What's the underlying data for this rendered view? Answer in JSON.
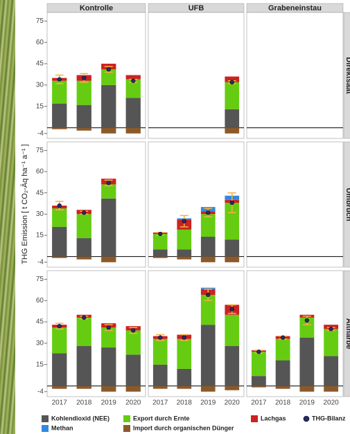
{
  "chart_data": {
    "type": "bar",
    "ylabel": "THG Emission [ t CO₂-Äq ha⁻¹ a⁻¹ ]",
    "facet_columns": [
      "Kontrolle",
      "UFB",
      "Grabeneinstau"
    ],
    "facet_rows": [
      "Direktsaat",
      "Umbruch",
      "Altnarbe"
    ],
    "categories": [
      "2017",
      "2018",
      "2019",
      "2020"
    ],
    "ylim": [
      -7.5,
      81
    ],
    "yticks": [
      -4,
      15,
      30,
      45,
      60,
      75
    ],
    "grid": false,
    "series": [
      {
        "name": "Kohlendioxid (NEE)",
        "color": "#555555"
      },
      {
        "name": "Export durch Ernte",
        "color": "#66cc11"
      },
      {
        "name": "Lachgas",
        "color": "#cc2222"
      },
      {
        "name": "Methan",
        "color": "#3388dd"
      },
      {
        "name": "Import durch organischen Dünger",
        "color": "#8b5a2b"
      }
    ],
    "balance_series": {
      "name": "THG-Bilanz",
      "color": "#2a2a70",
      "error_color": "#f5b041"
    },
    "panels": [
      {
        "series_values": [
          [
            17,
            16,
            30,
            21
          ],
          [
            16,
            17,
            11,
            13
          ],
          [
            2,
            4,
            4,
            3
          ],
          [
            0,
            0,
            0,
            0
          ],
          [
            -1,
            -2,
            -4,
            -4
          ]
        ],
        "balance": [
          34,
          35,
          41,
          33
        ],
        "balance_error": [
          3,
          3,
          2,
          1
        ]
      },
      {
        "series_values": [
          [
            null,
            null,
            null,
            13
          ],
          [
            null,
            null,
            null,
            19
          ],
          [
            null,
            null,
            null,
            4
          ],
          [
            null,
            null,
            null,
            0
          ],
          [
            null,
            null,
            null,
            -4
          ]
        ],
        "balance": [
          null,
          null,
          null,
          32
        ],
        "balance_error": [
          null,
          null,
          null,
          1
        ]
      },
      {
        "series_values": [
          [
            null,
            null,
            null,
            null
          ],
          [
            null,
            null,
            null,
            null
          ],
          [
            null,
            null,
            null,
            null
          ],
          [
            null,
            null,
            null,
            null
          ],
          [
            null,
            null,
            null,
            null
          ]
        ],
        "balance": [
          null,
          null,
          null,
          null
        ],
        "balance_error": [
          null,
          null,
          null,
          null
        ]
      },
      {
        "series_values": [
          [
            21,
            13,
            41,
            null
          ],
          [
            13,
            17,
            10,
            null
          ],
          [
            2,
            3,
            4,
            null
          ],
          [
            0,
            0,
            0,
            null
          ],
          [
            -1,
            -2,
            -4,
            null
          ]
        ],
        "balance": [
          36,
          31,
          52,
          null
        ],
        "balance_error": [
          3,
          1,
          2,
          null
        ]
      },
      {
        "series_values": [
          [
            5,
            5,
            14,
            12
          ],
          [
            11,
            14,
            16,
            26
          ],
          [
            1,
            7,
            2,
            2
          ],
          [
            0,
            1,
            3,
            3
          ],
          [
            -1,
            -2,
            -4,
            -4
          ]
        ],
        "balance": [
          16,
          25,
          31,
          38
        ],
        "balance_error": [
          1,
          4,
          3,
          7
        ]
      },
      {
        "series_values": [
          [
            null,
            null,
            null,
            null
          ],
          [
            null,
            null,
            null,
            null
          ],
          [
            null,
            null,
            null,
            null
          ],
          [
            null,
            null,
            null,
            null
          ],
          [
            null,
            null,
            null,
            null
          ]
        ],
        "balance": [
          null,
          null,
          null,
          null
        ],
        "balance_error": [
          null,
          null,
          null,
          null
        ]
      },
      {
        "series_values": [
          [
            23,
            28,
            27,
            22
          ],
          [
            18,
            20,
            14,
            17
          ],
          [
            2,
            2,
            3,
            3
          ],
          [
            0,
            0,
            0,
            0
          ],
          [
            -2,
            -2,
            -4,
            -4
          ]
        ],
        "balance": [
          42,
          48,
          41,
          39
        ],
        "balance_error": [
          2,
          1,
          2,
          2
        ]
      },
      {
        "series_values": [
          [
            15,
            12,
            43,
            28
          ],
          [
            18,
            21,
            21,
            22
          ],
          [
            2,
            3,
            4,
            7
          ],
          [
            0,
            0,
            1,
            0
          ],
          [
            -2,
            -2,
            -4,
            -3
          ]
        ],
        "balance": [
          34,
          34,
          64,
          54
        ],
        "balance_error": [
          2,
          2,
          4,
          3
        ]
      },
      {
        "series_values": [
          [
            7,
            18,
            34,
            21
          ],
          [
            17,
            15,
            14,
            19
          ],
          [
            1,
            2,
            2,
            3
          ],
          [
            0,
            0,
            0,
            0
          ],
          [
            -1,
            -2,
            -4,
            -4
          ]
        ],
        "balance": [
          24,
          34,
          46,
          40
        ],
        "balance_error": [
          1,
          1,
          3,
          1
        ]
      }
    ]
  }
}
